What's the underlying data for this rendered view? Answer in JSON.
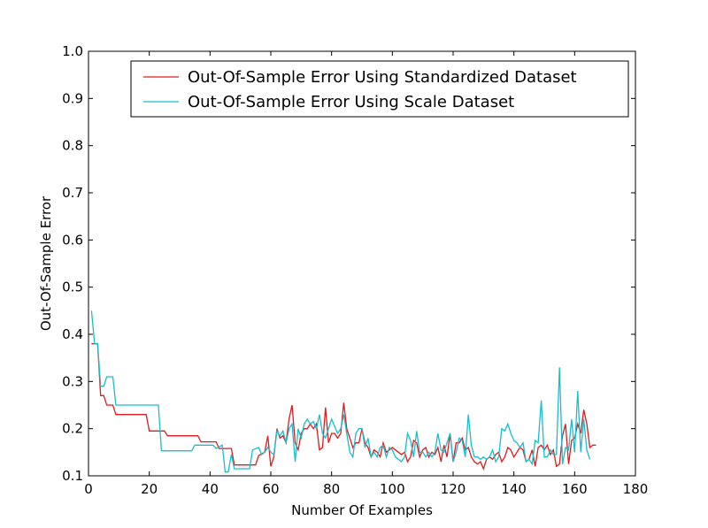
{
  "chart_data": {
    "type": "line",
    "title": "",
    "xlabel": "Number Of Examples",
    "ylabel": "Out-Of-Sample Error",
    "xlim": [
      0,
      180
    ],
    "ylim": [
      0.1,
      1.0
    ],
    "xticks": [
      0,
      20,
      40,
      60,
      80,
      100,
      120,
      140,
      160,
      180
    ],
    "yticks": [
      0.1,
      0.2,
      0.3,
      0.4,
      0.5,
      0.6,
      0.7,
      0.8,
      0.9,
      1.0
    ],
    "xtick_labels": [
      "0",
      "20",
      "40",
      "60",
      "80",
      "100",
      "120",
      "140",
      "160",
      "180"
    ],
    "ytick_labels": [
      "0.1",
      "0.2",
      "0.3",
      "0.4",
      "0.5",
      "0.6",
      "0.7",
      "0.8",
      "0.9",
      "1.0"
    ],
    "grid": false,
    "legend_position": "top-right",
    "series": [
      {
        "name": "Out-Of-Sample Error Using Standardized Dataset",
        "color": "#e31a1c",
        "points": [
          [
            1,
            0.38
          ],
          [
            3,
            0.38
          ],
          [
            4,
            0.27
          ],
          [
            5,
            0.27
          ],
          [
            6,
            0.25
          ],
          [
            8,
            0.25
          ],
          [
            9,
            0.23
          ],
          [
            19,
            0.23
          ],
          [
            20,
            0.195
          ],
          [
            25,
            0.195
          ],
          [
            26,
            0.185
          ],
          [
            36,
            0.185
          ],
          [
            37,
            0.172
          ],
          [
            42,
            0.172
          ],
          [
            43,
            0.158
          ],
          [
            47,
            0.158
          ],
          [
            48,
            0.123
          ],
          [
            55,
            0.123
          ],
          [
            56,
            0.143
          ],
          [
            58,
            0.15
          ],
          [
            59,
            0.185
          ],
          [
            60,
            0.12
          ],
          [
            61,
            0.14
          ],
          [
            62,
            0.2
          ],
          [
            63,
            0.18
          ],
          [
            64,
            0.185
          ],
          [
            65,
            0.17
          ],
          [
            66,
            0.22
          ],
          [
            67,
            0.25
          ],
          [
            68,
            0.17
          ],
          [
            69,
            0.155
          ],
          [
            70,
            0.19
          ],
          [
            71,
            0.2
          ],
          [
            72,
            0.2
          ],
          [
            73,
            0.21
          ],
          [
            74,
            0.2
          ],
          [
            75,
            0.21
          ],
          [
            76,
            0.155
          ],
          [
            77,
            0.16
          ],
          [
            78,
            0.245
          ],
          [
            79,
            0.17
          ],
          [
            80,
            0.19
          ],
          [
            81,
            0.19
          ],
          [
            82,
            0.18
          ],
          [
            83,
            0.19
          ],
          [
            84,
            0.255
          ],
          [
            85,
            0.2
          ],
          [
            86,
            0.18
          ],
          [
            87,
            0.16
          ],
          [
            88,
            0.17
          ],
          [
            89,
            0.17
          ],
          [
            90,
            0.2
          ],
          [
            91,
            0.17
          ],
          [
            92,
            0.16
          ],
          [
            93,
            0.14
          ],
          [
            94,
            0.155
          ],
          [
            95,
            0.15
          ],
          [
            96,
            0.14
          ],
          [
            97,
            0.17
          ],
          [
            98,
            0.15
          ],
          [
            99,
            0.155
          ],
          [
            100,
            0.16
          ],
          [
            101,
            0.155
          ],
          [
            102,
            0.15
          ],
          [
            103,
            0.145
          ],
          [
            104,
            0.15
          ],
          [
            105,
            0.13
          ],
          [
            106,
            0.14
          ],
          [
            107,
            0.175
          ],
          [
            108,
            0.17
          ],
          [
            109,
            0.14
          ],
          [
            110,
            0.155
          ],
          [
            111,
            0.16
          ],
          [
            112,
            0.14
          ],
          [
            113,
            0.15
          ],
          [
            114,
            0.145
          ],
          [
            115,
            0.16
          ],
          [
            116,
            0.13
          ],
          [
            117,
            0.165
          ],
          [
            118,
            0.14
          ],
          [
            119,
            0.19
          ],
          [
            120,
            0.13
          ],
          [
            121,
            0.17
          ],
          [
            122,
            0.17
          ],
          [
            123,
            0.18
          ],
          [
            124,
            0.155
          ],
          [
            125,
            0.16
          ],
          [
            126,
            0.14
          ],
          [
            127,
            0.13
          ],
          [
            128,
            0.125
          ],
          [
            129,
            0.13
          ],
          [
            130,
            0.115
          ],
          [
            131,
            0.135
          ],
          [
            132,
            0.14
          ],
          [
            133,
            0.135
          ],
          [
            134,
            0.145
          ],
          [
            135,
            0.15
          ],
          [
            136,
            0.13
          ],
          [
            137,
            0.14
          ],
          [
            138,
            0.16
          ],
          [
            139,
            0.155
          ],
          [
            140,
            0.14
          ],
          [
            141,
            0.15
          ],
          [
            142,
            0.16
          ],
          [
            143,
            0.155
          ],
          [
            144,
            0.13
          ],
          [
            145,
            0.135
          ],
          [
            146,
            0.155
          ],
          [
            147,
            0.12
          ],
          [
            148,
            0.16
          ],
          [
            149,
            0.165
          ],
          [
            150,
            0.155
          ],
          [
            151,
            0.165
          ],
          [
            152,
            0.145
          ],
          [
            153,
            0.155
          ],
          [
            154,
            0.12
          ],
          [
            155,
            0.125
          ],
          [
            156,
            0.185
          ],
          [
            157,
            0.21
          ],
          [
            158,
            0.125
          ],
          [
            159,
            0.175
          ],
          [
            160,
            0.18
          ],
          [
            161,
            0.21
          ],
          [
            162,
            0.19
          ],
          [
            163,
            0.24
          ],
          [
            164,
            0.21
          ],
          [
            165,
            0.16
          ],
          [
            166,
            0.165
          ],
          [
            167,
            0.165
          ]
        ]
      },
      {
        "name": "Out-Of-Sample Error Using Scale Dataset",
        "color": "#17becf",
        "points": [
          [
            1,
            0.45
          ],
          [
            2,
            0.38
          ],
          [
            3,
            0.38
          ],
          [
            4,
            0.29
          ],
          [
            5,
            0.29
          ],
          [
            6,
            0.31
          ],
          [
            8,
            0.31
          ],
          [
            9,
            0.25
          ],
          [
            23,
            0.25
          ],
          [
            24,
            0.153
          ],
          [
            34,
            0.153
          ],
          [
            35,
            0.165
          ],
          [
            41,
            0.165
          ],
          [
            42,
            0.158
          ],
          [
            44,
            0.165
          ],
          [
            45,
            0.108
          ],
          [
            46,
            0.108
          ],
          [
            47,
            0.145
          ],
          [
            48,
            0.115
          ],
          [
            53,
            0.115
          ],
          [
            54,
            0.155
          ],
          [
            56,
            0.16
          ],
          [
            57,
            0.145
          ],
          [
            58,
            0.15
          ],
          [
            59,
            0.16
          ],
          [
            60,
            0.15
          ],
          [
            61,
            0.145
          ],
          [
            62,
            0.195
          ],
          [
            63,
            0.185
          ],
          [
            64,
            0.195
          ],
          [
            65,
            0.17
          ],
          [
            66,
            0.2
          ],
          [
            67,
            0.21
          ],
          [
            68,
            0.13
          ],
          [
            69,
            0.2
          ],
          [
            70,
            0.18
          ],
          [
            71,
            0.21
          ],
          [
            72,
            0.22
          ],
          [
            73,
            0.21
          ],
          [
            74,
            0.215
          ],
          [
            75,
            0.2
          ],
          [
            76,
            0.23
          ],
          [
            77,
            0.19
          ],
          [
            78,
            0.18
          ],
          [
            79,
            0.2
          ],
          [
            80,
            0.22
          ],
          [
            81,
            0.205
          ],
          [
            82,
            0.19
          ],
          [
            83,
            0.2
          ],
          [
            84,
            0.23
          ],
          [
            85,
            0.19
          ],
          [
            86,
            0.15
          ],
          [
            87,
            0.14
          ],
          [
            88,
            0.19
          ],
          [
            89,
            0.2
          ],
          [
            90,
            0.2
          ],
          [
            91,
            0.16
          ],
          [
            92,
            0.18
          ],
          [
            93,
            0.14
          ],
          [
            94,
            0.15
          ],
          [
            95,
            0.14
          ],
          [
            96,
            0.16
          ],
          [
            97,
            0.165
          ],
          [
            98,
            0.14
          ],
          [
            99,
            0.16
          ],
          [
            100,
            0.155
          ],
          [
            101,
            0.14
          ],
          [
            102,
            0.135
          ],
          [
            103,
            0.13
          ],
          [
            104,
            0.14
          ],
          [
            105,
            0.19
          ],
          [
            106,
            0.175
          ],
          [
            107,
            0.14
          ],
          [
            108,
            0.195
          ],
          [
            109,
            0.15
          ],
          [
            110,
            0.15
          ],
          [
            111,
            0.14
          ],
          [
            112,
            0.15
          ],
          [
            113,
            0.14
          ],
          [
            114,
            0.15
          ],
          [
            115,
            0.19
          ],
          [
            116,
            0.155
          ],
          [
            117,
            0.15
          ],
          [
            118,
            0.17
          ],
          [
            119,
            0.19
          ],
          [
            120,
            0.13
          ],
          [
            121,
            0.15
          ],
          [
            122,
            0.18
          ],
          [
            123,
            0.175
          ],
          [
            124,
            0.14
          ],
          [
            125,
            0.23
          ],
          [
            126,
            0.165
          ],
          [
            127,
            0.14
          ],
          [
            128,
            0.14
          ],
          [
            129,
            0.135
          ],
          [
            130,
            0.14
          ],
          [
            131,
            0.135
          ],
          [
            132,
            0.14
          ],
          [
            133,
            0.155
          ],
          [
            134,
            0.13
          ],
          [
            135,
            0.14
          ],
          [
            136,
            0.2
          ],
          [
            137,
            0.195
          ],
          [
            138,
            0.21
          ],
          [
            139,
            0.19
          ],
          [
            140,
            0.175
          ],
          [
            141,
            0.17
          ],
          [
            142,
            0.16
          ],
          [
            143,
            0.17
          ],
          [
            144,
            0.13
          ],
          [
            145,
            0.135
          ],
          [
            146,
            0.125
          ],
          [
            147,
            0.175
          ],
          [
            148,
            0.17
          ],
          [
            149,
            0.26
          ],
          [
            150,
            0.14
          ],
          [
            151,
            0.14
          ],
          [
            152,
            0.155
          ],
          [
            153,
            0.145
          ],
          [
            154,
            0.145
          ],
          [
            155,
            0.33
          ],
          [
            156,
            0.125
          ],
          [
            157,
            0.16
          ],
          [
            158,
            0.155
          ],
          [
            159,
            0.22
          ],
          [
            160,
            0.15
          ],
          [
            161,
            0.28
          ],
          [
            162,
            0.15
          ],
          [
            163,
            0.22
          ],
          [
            164,
            0.155
          ],
          [
            165,
            0.135
          ]
        ]
      }
    ]
  }
}
